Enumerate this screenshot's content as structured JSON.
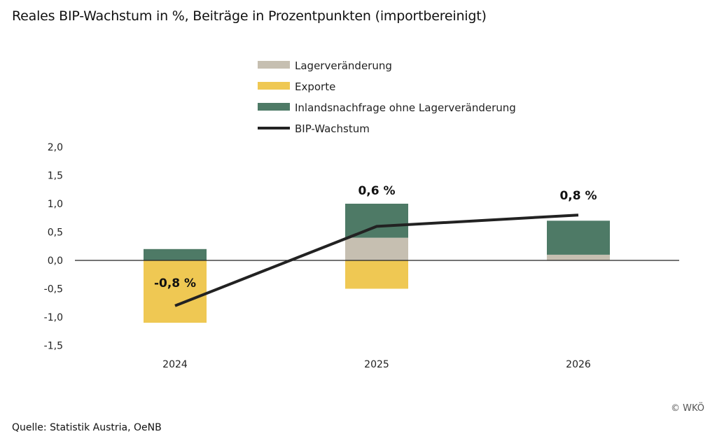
{
  "title": "Reales BIP-Wachstum in %, Beiträge in Prozentpunkten (importbereinigt)",
  "source": "Quelle: Statistik Austria, OeNB",
  "copyright": "© WKÖ",
  "chart_data": {
    "type": "bar",
    "stacked": true,
    "categories": [
      "2024",
      "2025",
      "2026"
    ],
    "ylim": [
      -1.5,
      2.0
    ],
    "yticks": [
      "2,0",
      "1,5",
      "1,0",
      "0,5",
      "0,0",
      "-0,5",
      "-1,0",
      "-1,5"
    ],
    "ytick_values": [
      2.0,
      1.5,
      1.0,
      0.5,
      0.0,
      -0.5,
      -1.0,
      -1.5
    ],
    "grid": false,
    "legend_placement": "top-center",
    "series": [
      {
        "name": "Lagerveränderung",
        "type": "bar",
        "color": "#c6bfb1",
        "values": [
          0.0,
          0.4,
          0.1
        ]
      },
      {
        "name": "Exporte",
        "type": "bar",
        "color": "#efc853",
        "values": [
          -1.1,
          -0.5,
          0.0
        ]
      },
      {
        "name": "Inlandsnachfrage ohne Lagerveränderung",
        "type": "bar",
        "color": "#4e7a66",
        "values": [
          0.2,
          0.6,
          0.6
        ]
      },
      {
        "name": "BIP-Wachstum",
        "type": "line",
        "color": "#222222",
        "values": [
          -0.8,
          0.6,
          0.8
        ]
      }
    ],
    "data_labels": [
      "-0,8 %",
      "0,6 %",
      "0,8 %"
    ]
  }
}
